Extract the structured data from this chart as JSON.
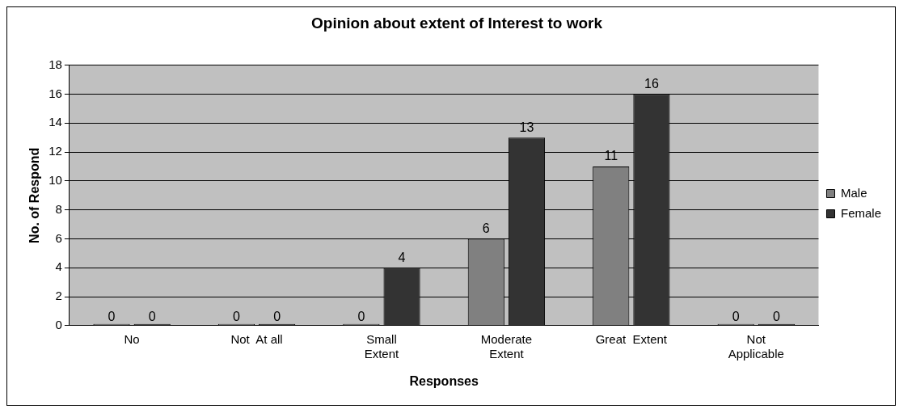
{
  "chart_data": {
    "type": "bar",
    "title": "Opinion about extent of Interest to work",
    "xlabel": "Responses",
    "ylabel": "No. of Respond",
    "categories": [
      "No",
      "Not  At all",
      "Small\nExtent",
      "Moderate\nExtent",
      "Great  Extent",
      "Not\nApplicable"
    ],
    "series": [
      {
        "name": "Male",
        "color": "#808080",
        "values": [
          0,
          0,
          0,
          6,
          11,
          0
        ]
      },
      {
        "name": "Female",
        "color": "#333333",
        "values": [
          0,
          0,
          4,
          13,
          16,
          0
        ]
      }
    ],
    "ylim": [
      0,
      18
    ],
    "yticks": [
      0,
      2,
      4,
      6,
      8,
      10,
      12,
      14,
      16,
      18
    ],
    "grid": "y",
    "legend": "right",
    "data_labels": true
  }
}
